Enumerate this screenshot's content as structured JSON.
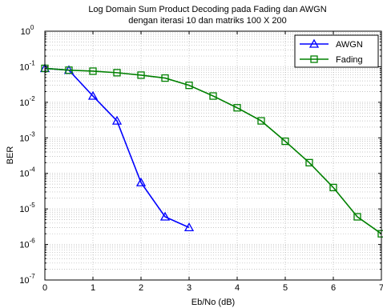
{
  "chart_data": {
    "type": "line",
    "title": "Log Domain Sum Product Decoding pada Fading dan AWGN",
    "subtitle": "dengan iterasi 10 dan matriks 100 X 200",
    "xlabel": "Eb/No (dB)",
    "ylabel": "BER",
    "xlim": [
      0,
      7
    ],
    "ylim": [
      1e-07,
      1
    ],
    "yscale": "log",
    "grid": true,
    "legend_position": "top-right",
    "x_ticks": [
      "0",
      "1",
      "2",
      "3",
      "4",
      "5",
      "6",
      "7"
    ],
    "y_ticks": [
      {
        "base": "10",
        "exp": "-7"
      },
      {
        "base": "10",
        "exp": "-6"
      },
      {
        "base": "10",
        "exp": "-5"
      },
      {
        "base": "10",
        "exp": "-4"
      },
      {
        "base": "10",
        "exp": "-3"
      },
      {
        "base": "10",
        "exp": "-2"
      },
      {
        "base": "10",
        "exp": "-1"
      },
      {
        "base": "10",
        "exp": "0"
      }
    ],
    "series": [
      {
        "name": "AWGN",
        "color": "#0000ff",
        "marker": "triangle",
        "x": [
          0,
          0.5,
          1,
          1.5,
          2,
          2.5,
          3
        ],
        "y": [
          0.09,
          0.08,
          0.015,
          0.003,
          5.5e-05,
          6e-06,
          3e-06
        ]
      },
      {
        "name": "Fading",
        "color": "#008000",
        "marker": "square",
        "x": [
          0,
          0.5,
          1,
          1.5,
          2,
          2.5,
          3,
          3.5,
          4,
          4.5,
          5,
          5.5,
          6,
          6.5,
          7
        ],
        "y": [
          0.09,
          0.08,
          0.075,
          0.068,
          0.058,
          0.048,
          0.03,
          0.015,
          0.007,
          0.003,
          0.0008,
          0.0002,
          4e-05,
          6e-06,
          2e-06
        ]
      }
    ]
  }
}
